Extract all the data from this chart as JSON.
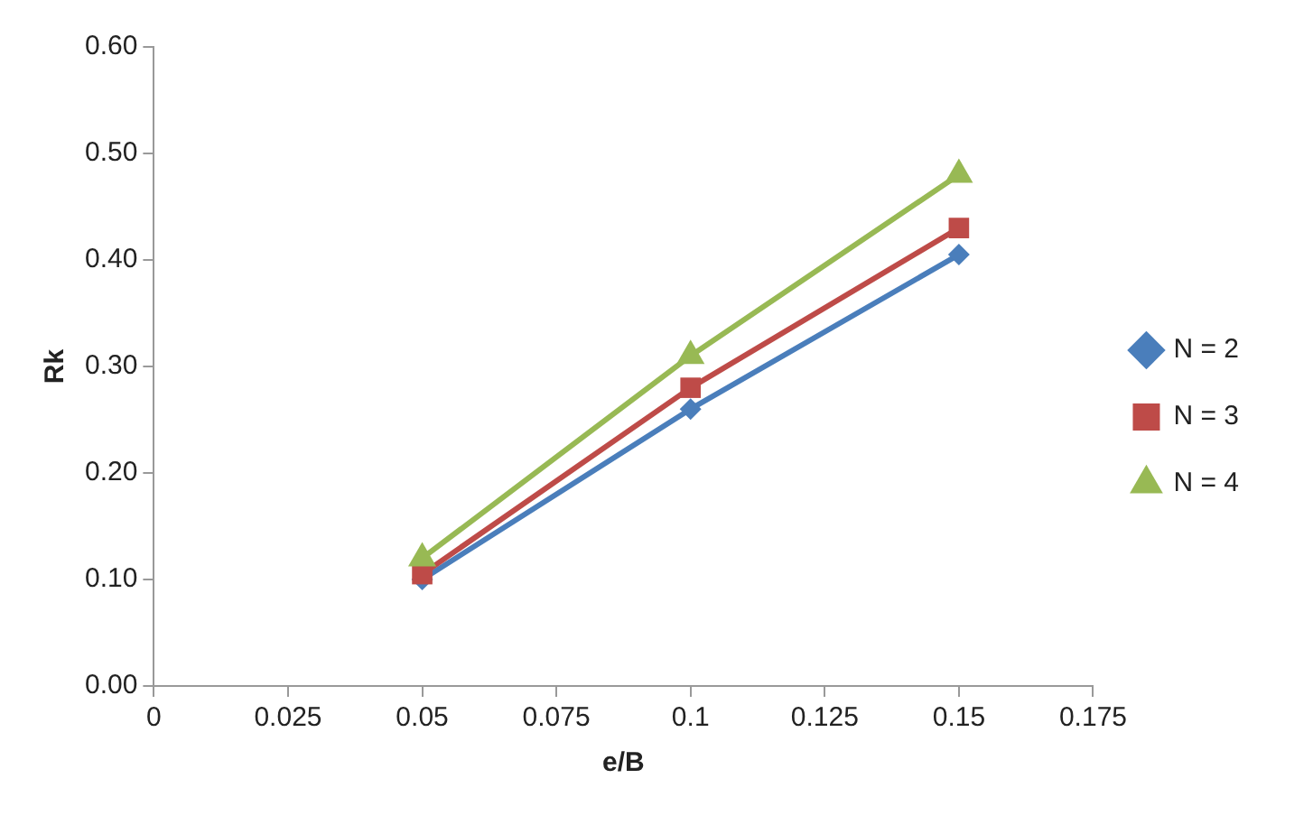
{
  "chart_data": {
    "type": "line",
    "xlabel": "e/B",
    "ylabel": "Rk",
    "x": [
      0.05,
      0.1,
      0.15
    ],
    "series": [
      {
        "name": "N = 2",
        "color": "#4a7ebb",
        "marker": "diamond",
        "values": [
          0.1,
          0.26,
          0.405
        ]
      },
      {
        "name": "N = 3",
        "color": "#be4b48",
        "marker": "square",
        "values": [
          0.105,
          0.28,
          0.43
        ]
      },
      {
        "name": "N = 4",
        "color": "#98b954",
        "marker": "triangle",
        "values": [
          0.12,
          0.31,
          0.48
        ]
      }
    ],
    "xlim": [
      0,
      0.175
    ],
    "xticks": [
      0,
      0.025,
      0.05,
      0.075,
      0.1,
      0.125,
      0.15,
      0.175
    ],
    "ylim": [
      0,
      0.6
    ],
    "yticks": [
      {
        "value": 0,
        "label": "0.00"
      },
      {
        "value": 0.1,
        "label": "0.10"
      },
      {
        "value": 0.2,
        "label": "0.20"
      },
      {
        "value": 0.3,
        "label": "0.30"
      },
      {
        "value": 0.4,
        "label": "0.40"
      },
      {
        "value": 0.5,
        "label": "0.50"
      },
      {
        "value": 0.6,
        "label": "0.60"
      }
    ],
    "grid": false,
    "legend": "right",
    "line_style": "solid"
  }
}
